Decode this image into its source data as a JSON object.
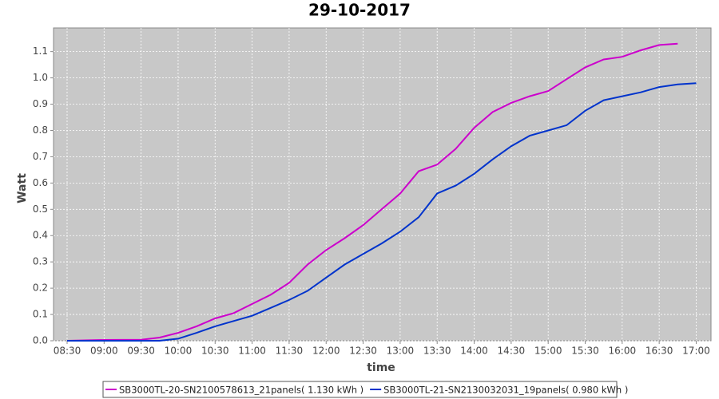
{
  "chart_data": {
    "type": "line",
    "title": "29-10-2017",
    "x_label": "time",
    "y_label": "Watt",
    "x": [
      "08:30",
      "09:00",
      "09:30",
      "09:45",
      "10:00",
      "10:15",
      "10:30",
      "10:45",
      "11:00",
      "11:15",
      "11:30",
      "11:45",
      "12:00",
      "12:15",
      "12:30",
      "12:45",
      "13:00",
      "13:15",
      "13:30",
      "13:45",
      "14:00",
      "14:15",
      "14:30",
      "14:45",
      "15:00",
      "15:15",
      "15:30",
      "15:45",
      "16:00",
      "16:15",
      "16:30",
      "16:45",
      "17:00"
    ],
    "series": [
      {
        "name": "SB3000TL-20-SN2100578613_21panels( 1.130 kWh )",
        "color": "#cc00cc",
        "values": [
          0,
          0.003,
          0.004,
          0.012,
          0.03,
          0.055,
          0.085,
          0.105,
          0.14,
          0.175,
          0.22,
          0.29,
          0.345,
          0.39,
          0.44,
          0.5,
          0.56,
          0.645,
          0.67,
          0.73,
          0.81,
          0.87,
          0.905,
          0.93,
          0.95,
          0.995,
          1.04,
          1.07,
          1.08,
          1.105,
          1.125,
          1.13,
          null
        ]
      },
      {
        "name": "SB3000TL-21-SN2130032031_19panels( 0.980 kWh )",
        "color": "#0033cc",
        "values": [
          0,
          0,
          0,
          0,
          0.008,
          0.03,
          0.055,
          0.075,
          0.095,
          0.125,
          0.155,
          0.19,
          0.24,
          0.29,
          0.33,
          0.37,
          0.415,
          0.47,
          0.56,
          0.59,
          0.635,
          0.69,
          0.74,
          0.78,
          0.8,
          0.82,
          0.875,
          0.915,
          0.93,
          0.945,
          0.965,
          0.975,
          0.98
        ]
      }
    ],
    "xlim": [
      "08:19",
      "17:12"
    ],
    "xticks": [
      "08:30",
      "09:00",
      "09:30",
      "10:00",
      "10:30",
      "11:00",
      "11:30",
      "12:00",
      "12:30",
      "13:00",
      "13:30",
      "14:00",
      "14:30",
      "15:00",
      "15:30",
      "16:00",
      "16:30",
      "17:00"
    ],
    "ylim": [
      0,
      1.19
    ],
    "yticks": [
      {
        "value": 0,
        "label": "0.0"
      },
      0.1,
      0.2,
      0.3,
      0.4,
      0.5,
      0.6,
      0.7,
      0.8,
      0.9,
      {
        "value": 1,
        "label": "1.0"
      },
      1.1
    ],
    "grid": true
  }
}
